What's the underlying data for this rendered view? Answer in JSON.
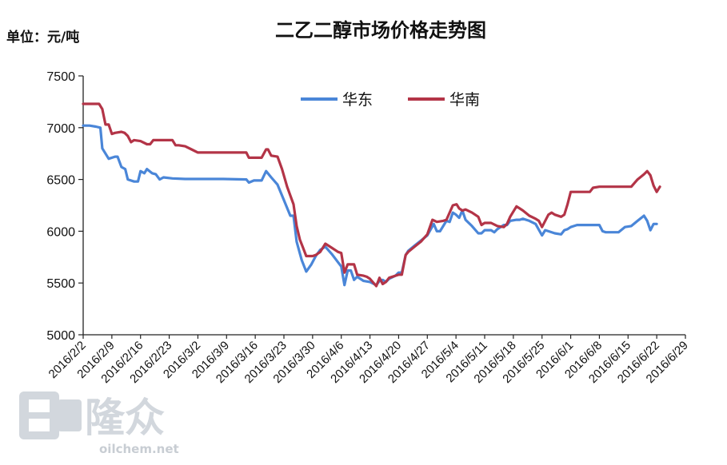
{
  "chart_data": {
    "type": "line",
    "title": "二乙二醇市场价格走势图",
    "unit_label": "单位：元/吨",
    "ylim": [
      5000,
      7500
    ],
    "yticks": [
      5000,
      5500,
      6000,
      6500,
      7000,
      7500
    ],
    "x_ticks": [
      "2016/2/2",
      "2016/2/9",
      "2016/2/16",
      "2016/2/23",
      "2016/3/2",
      "2016/3/9",
      "2016/3/16",
      "2016/3/23",
      "2016/3/30",
      "2016/4/6",
      "2016/4/13",
      "2016/4/20",
      "2016/4/27",
      "2016/5/4",
      "2016/5/11",
      "2016/5/18",
      "2016/5/25",
      "2016/6/1",
      "2016/6/8",
      "2016/6/15",
      "2016/6/22",
      "2016/6/29"
    ],
    "legend_position": "top-center",
    "series": [
      {
        "name": "华东",
        "color": "#4a86d8",
        "points": [
          [
            0,
            7020
          ],
          [
            1,
            7020
          ],
          [
            2,
            7010
          ],
          [
            2.7,
            7000
          ],
          [
            3,
            6800
          ],
          [
            4,
            6700
          ],
          [
            5,
            6720
          ],
          [
            5.4,
            6720
          ],
          [
            6,
            6620
          ],
          [
            6.6,
            6600
          ],
          [
            7,
            6500
          ],
          [
            8,
            6480
          ],
          [
            8.6,
            6480
          ],
          [
            9,
            6580
          ],
          [
            9.6,
            6560
          ],
          [
            10,
            6600
          ],
          [
            10.8,
            6560
          ],
          [
            11.4,
            6550
          ],
          [
            12,
            6500
          ],
          [
            12.6,
            6520
          ],
          [
            14,
            6510
          ],
          [
            16,
            6505
          ],
          [
            18,
            6505
          ],
          [
            20,
            6505
          ],
          [
            22,
            6505
          ],
          [
            25.6,
            6500
          ],
          [
            26,
            6470
          ],
          [
            26.8,
            6490
          ],
          [
            28,
            6490
          ],
          [
            28.7,
            6580
          ],
          [
            29.5,
            6520
          ],
          [
            30.5,
            6450
          ],
          [
            31.5,
            6300
          ],
          [
            32.5,
            6150
          ],
          [
            33,
            6150
          ],
          [
            33.5,
            5900
          ],
          [
            34.3,
            5720
          ],
          [
            35,
            5610
          ],
          [
            35.8,
            5680
          ],
          [
            36.5,
            5760
          ],
          [
            37.2,
            5820
          ],
          [
            38,
            5850
          ],
          [
            39,
            5780
          ],
          [
            40,
            5700
          ],
          [
            40.5,
            5660
          ],
          [
            41,
            5480
          ],
          [
            41.5,
            5620
          ],
          [
            42,
            5620
          ],
          [
            42.5,
            5530
          ],
          [
            43,
            5560
          ],
          [
            43.5,
            5540
          ],
          [
            44,
            5520
          ],
          [
            45,
            5510
          ],
          [
            46,
            5480
          ],
          [
            46.5,
            5520
          ],
          [
            47,
            5530
          ],
          [
            47.5,
            5510
          ],
          [
            48,
            5540
          ],
          [
            49,
            5570
          ],
          [
            49.5,
            5600
          ],
          [
            50,
            5600
          ],
          [
            50.6,
            5770
          ],
          [
            51,
            5810
          ],
          [
            52,
            5860
          ],
          [
            53,
            5910
          ],
          [
            54,
            5960
          ],
          [
            55,
            6070
          ],
          [
            55.5,
            6000
          ],
          [
            56,
            6000
          ],
          [
            56.5,
            6050
          ],
          [
            57,
            6100
          ],
          [
            57.5,
            6090
          ],
          [
            58,
            6180
          ],
          [
            58.5,
            6160
          ],
          [
            59,
            6130
          ],
          [
            59.5,
            6200
          ],
          [
            60,
            6110
          ],
          [
            61,
            6050
          ],
          [
            62,
            5980
          ],
          [
            62.5,
            5980
          ],
          [
            63,
            6010
          ],
          [
            64,
            6010
          ],
          [
            64.5,
            5990
          ],
          [
            65,
            6020
          ],
          [
            66,
            6060
          ],
          [
            66.5,
            6060
          ],
          [
            67,
            6100
          ],
          [
            68,
            6110
          ],
          [
            68.5,
            6110
          ],
          [
            69,
            6120
          ],
          [
            70,
            6100
          ],
          [
            71,
            6070
          ],
          [
            72,
            5960
          ],
          [
            72.5,
            6010
          ],
          [
            73,
            6000
          ],
          [
            74,
            5980
          ],
          [
            75,
            5970
          ],
          [
            75.5,
            6010
          ],
          [
            76,
            6020
          ],
          [
            76.5,
            6040
          ],
          [
            77,
            6050
          ],
          [
            77.5,
            6060
          ],
          [
            79,
            6060
          ],
          [
            80,
            6060
          ],
          [
            81,
            6060
          ],
          [
            81.5,
            6000
          ],
          [
            82,
            5990
          ],
          [
            83,
            5990
          ],
          [
            84,
            5990
          ],
          [
            85,
            6040
          ],
          [
            86,
            6050
          ],
          [
            87,
            6100
          ],
          [
            88,
            6150
          ],
          [
            88.5,
            6100
          ],
          [
            89,
            6010
          ],
          [
            89.5,
            6070
          ],
          [
            90,
            6070
          ]
        ]
      },
      {
        "name": "华南",
        "color": "#b33447",
        "points": [
          [
            0,
            7230
          ],
          [
            1,
            7230
          ],
          [
            2,
            7230
          ],
          [
            2.5,
            7230
          ],
          [
            3,
            7180
          ],
          [
            3.5,
            7030
          ],
          [
            4,
            7030
          ],
          [
            4.5,
            6940
          ],
          [
            5,
            6950
          ],
          [
            6,
            6960
          ],
          [
            6.5,
            6950
          ],
          [
            7,
            6920
          ],
          [
            7.5,
            6860
          ],
          [
            8,
            6880
          ],
          [
            9,
            6870
          ],
          [
            10,
            6840
          ],
          [
            10.5,
            6840
          ],
          [
            11,
            6880
          ],
          [
            12,
            6880
          ],
          [
            13,
            6880
          ],
          [
            14,
            6880
          ],
          [
            14.5,
            6830
          ],
          [
            15,
            6830
          ],
          [
            16,
            6820
          ],
          [
            17,
            6790
          ],
          [
            18,
            6760
          ],
          [
            20,
            6760
          ],
          [
            22,
            6760
          ],
          [
            25.6,
            6760
          ],
          [
            26,
            6710
          ],
          [
            28,
            6710
          ],
          [
            28.7,
            6790
          ],
          [
            29,
            6790
          ],
          [
            29.5,
            6730
          ],
          [
            30.5,
            6720
          ],
          [
            31.2,
            6600
          ],
          [
            32,
            6430
          ],
          [
            33,
            6260
          ],
          [
            33.5,
            6050
          ],
          [
            34,
            5920
          ],
          [
            34.5,
            5840
          ],
          [
            35,
            5760
          ],
          [
            36,
            5760
          ],
          [
            36.5,
            5770
          ],
          [
            37.2,
            5800
          ],
          [
            38,
            5880
          ],
          [
            39,
            5840
          ],
          [
            40,
            5800
          ],
          [
            40.5,
            5790
          ],
          [
            41,
            5600
          ],
          [
            41.5,
            5680
          ],
          [
            42,
            5680
          ],
          [
            42.5,
            5680
          ],
          [
            43,
            5580
          ],
          [
            44,
            5570
          ],
          [
            44.5,
            5560
          ],
          [
            45,
            5540
          ],
          [
            46,
            5470
          ],
          [
            46.5,
            5550
          ],
          [
            47,
            5490
          ],
          [
            47.5,
            5510
          ],
          [
            48,
            5550
          ],
          [
            49,
            5570
          ],
          [
            49.5,
            5580
          ],
          [
            50,
            5580
          ],
          [
            50.6,
            5770
          ],
          [
            51,
            5800
          ],
          [
            52,
            5850
          ],
          [
            53,
            5900
          ],
          [
            54,
            5970
          ],
          [
            54.8,
            6110
          ],
          [
            55.5,
            6090
          ],
          [
            56.5,
            6100
          ],
          [
            57,
            6110
          ],
          [
            58,
            6250
          ],
          [
            58.6,
            6260
          ],
          [
            59,
            6220
          ],
          [
            59.5,
            6200
          ],
          [
            60,
            6210
          ],
          [
            61,
            6180
          ],
          [
            62,
            6140
          ],
          [
            62.5,
            6060
          ],
          [
            63,
            6080
          ],
          [
            64,
            6080
          ],
          [
            65,
            6050
          ],
          [
            66,
            6040
          ],
          [
            66.5,
            6070
          ],
          [
            67,
            6140
          ],
          [
            68,
            6240
          ],
          [
            68.5,
            6220
          ],
          [
            69,
            6200
          ],
          [
            70,
            6150
          ],
          [
            71,
            6120
          ],
          [
            71.5,
            6100
          ],
          [
            72,
            6040
          ],
          [
            73,
            6160
          ],
          [
            73.5,
            6180
          ],
          [
            74,
            6160
          ],
          [
            75,
            6140
          ],
          [
            75.5,
            6160
          ],
          [
            76,
            6260
          ],
          [
            76.5,
            6380
          ],
          [
            77,
            6380
          ],
          [
            78,
            6380
          ],
          [
            79,
            6380
          ],
          [
            79.5,
            6380
          ],
          [
            80,
            6420
          ],
          [
            81,
            6430
          ],
          [
            82,
            6430
          ],
          [
            83,
            6430
          ],
          [
            84,
            6430
          ],
          [
            85,
            6430
          ],
          [
            86,
            6430
          ],
          [
            87,
            6500
          ],
          [
            88,
            6550
          ],
          [
            88.5,
            6580
          ],
          [
            89,
            6540
          ],
          [
            89.5,
            6440
          ],
          [
            90,
            6380
          ],
          [
            90.5,
            6430
          ]
        ]
      }
    ]
  },
  "watermark": {
    "brand": "隆众",
    "site": "oilchem.net",
    "logo_color": "#d2d7dd"
  }
}
